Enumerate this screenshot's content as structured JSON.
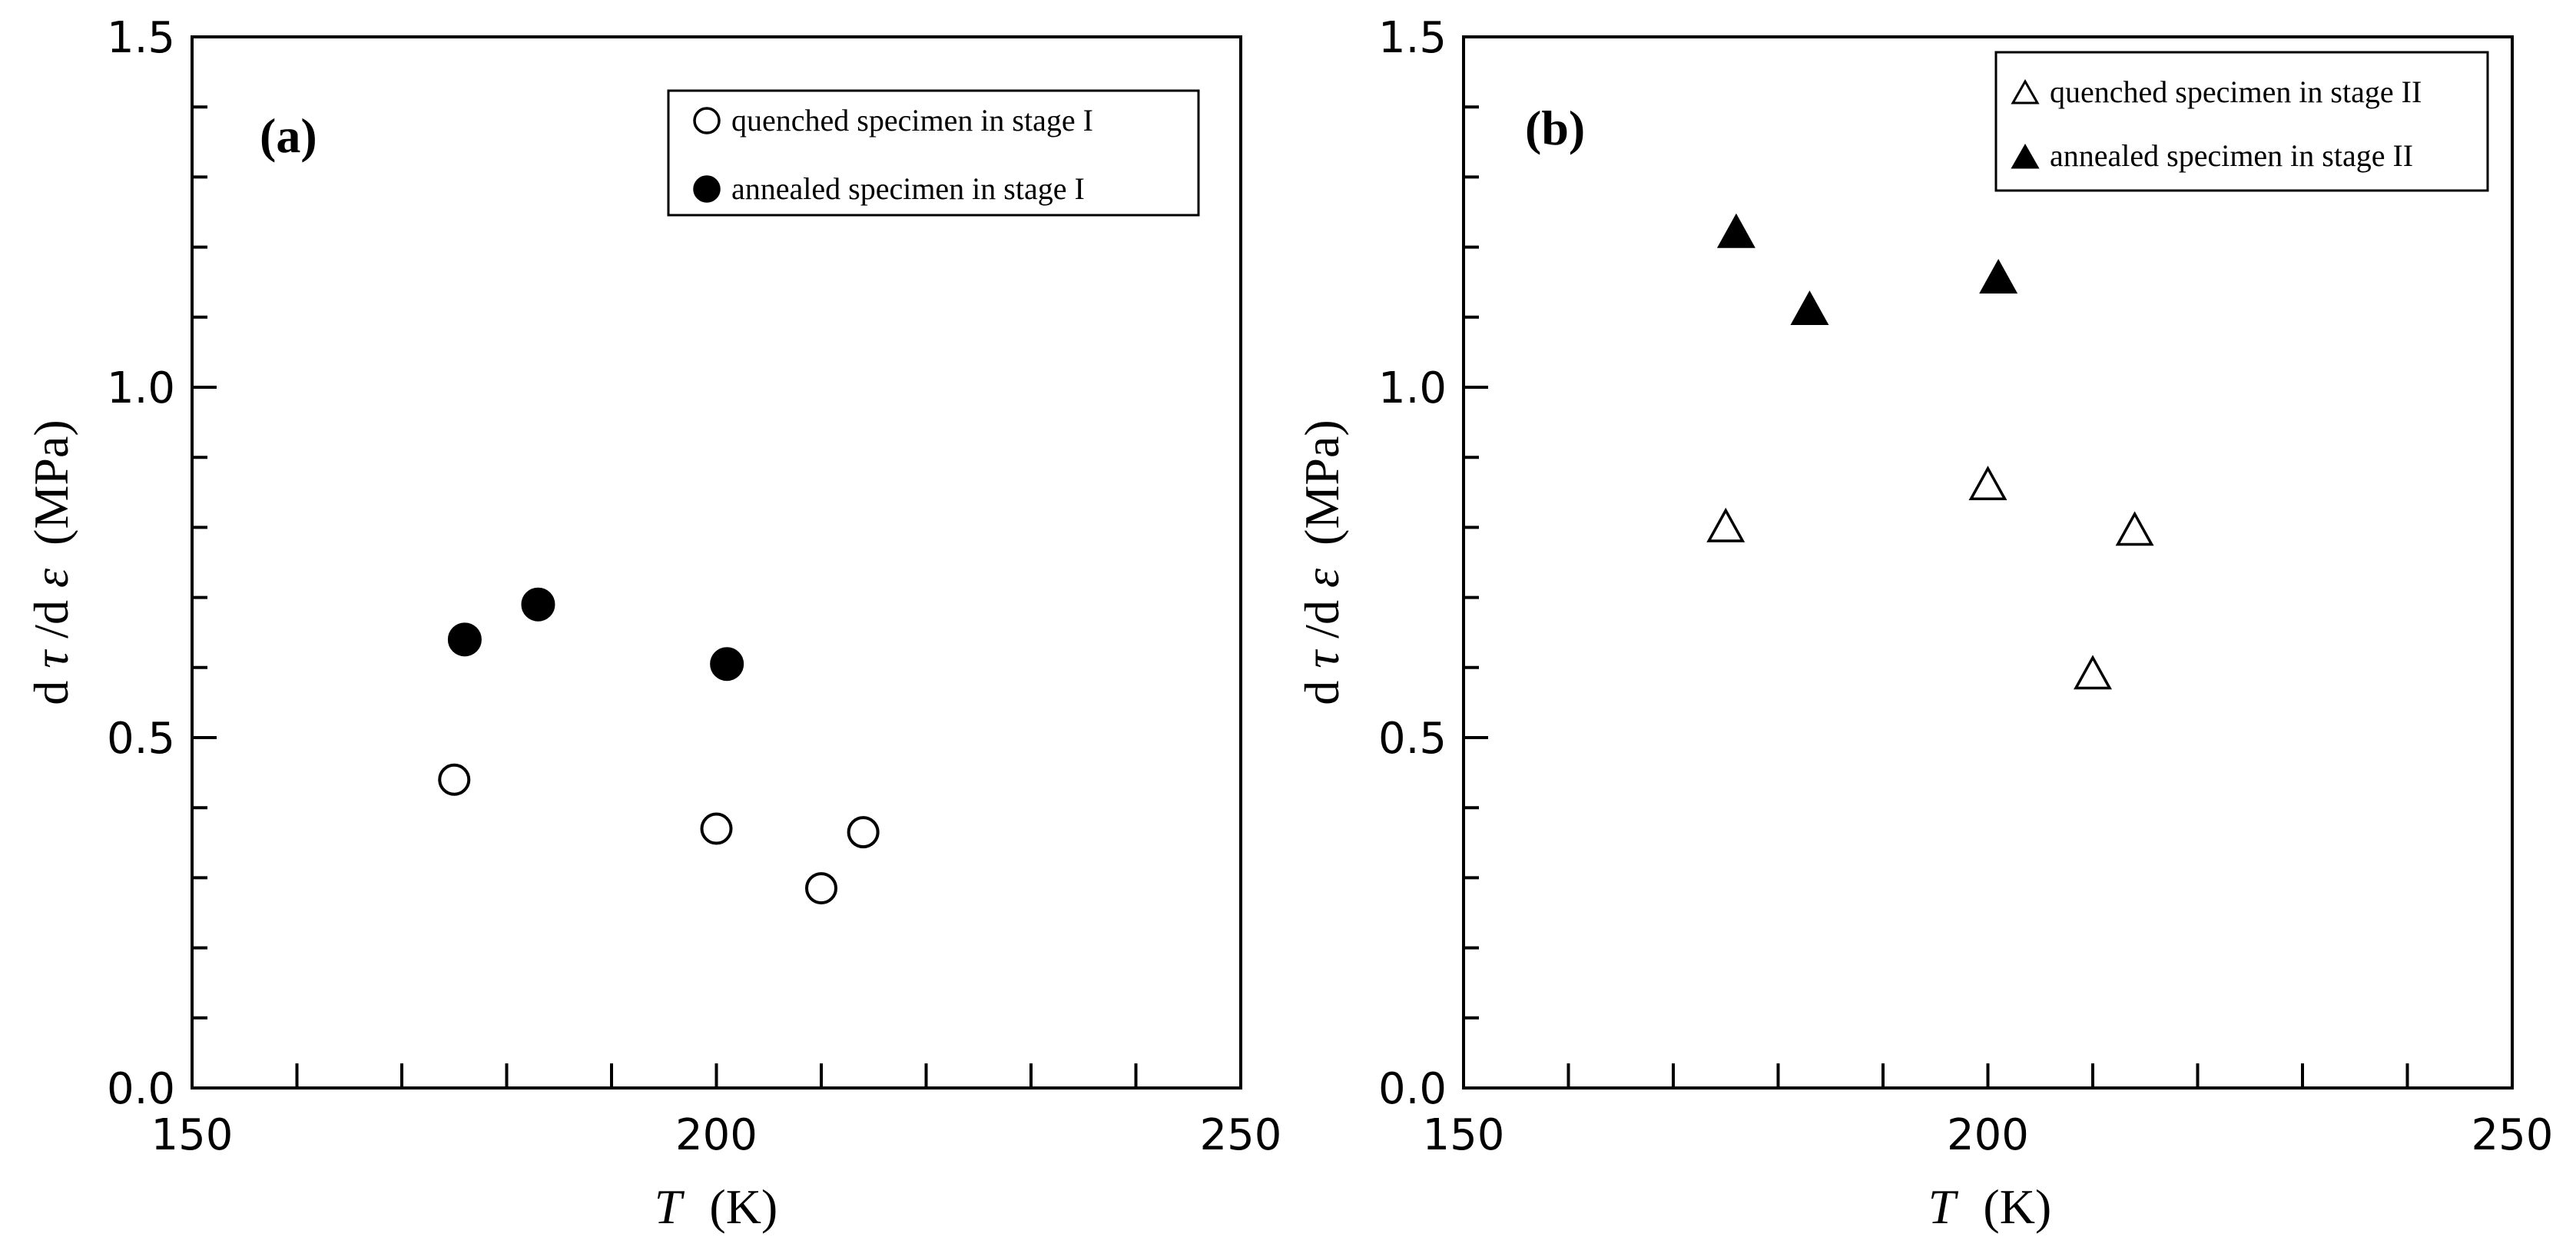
{
  "chart_data": [
    {
      "type": "scatter",
      "panel_label": "(a)",
      "xlabel_var": "T",
      "xlabel_unit": "(K)",
      "ylabel_prefix": "d",
      "ylabel_tau": "τ",
      "ylabel_mid": "/d",
      "ylabel_eps": "ε",
      "ylabel_unit": "(MPa)",
      "xlim": [
        150,
        250
      ],
      "ylim": [
        0.0,
        1.5
      ],
      "x_ticks": [
        150,
        200,
        250
      ],
      "x_tick_labels": [
        "150",
        "200",
        "250"
      ],
      "x_minor_step": 10,
      "y_ticks": [
        0.0,
        0.5,
        1.0,
        1.5
      ],
      "y_tick_labels": [
        "0.0",
        "0.5",
        "1.0",
        "1.5"
      ],
      "y_minor_step": 0.1,
      "grid": false,
      "legend_position": "top-right",
      "series": [
        {
          "name": "quenched specimen in stage I",
          "marker": "circle-open",
          "color": "#000000",
          "x": [
            175,
            200,
            210,
            214
          ],
          "y": [
            0.44,
            0.37,
            0.285,
            0.365
          ]
        },
        {
          "name": "annealed specimen in stage I",
          "marker": "circle-filled",
          "color": "#000000",
          "x": [
            176,
            183,
            201
          ],
          "y": [
            0.64,
            0.69,
            0.605
          ]
        }
      ]
    },
    {
      "type": "scatter",
      "panel_label": "(b)",
      "xlabel_var": "T",
      "xlabel_unit": "(K)",
      "ylabel_prefix": "d",
      "ylabel_tau": "τ",
      "ylabel_mid": "/d",
      "ylabel_eps": "ε",
      "ylabel_unit": "(MPa)",
      "xlim": [
        150,
        250
      ],
      "ylim": [
        0.0,
        1.5
      ],
      "x_ticks": [
        150,
        200,
        250
      ],
      "x_tick_labels": [
        "150",
        "200",
        "250"
      ],
      "x_minor_step": 10,
      "y_ticks": [
        0.0,
        0.5,
        1.0,
        1.5
      ],
      "y_tick_labels": [
        "0.0",
        "0.5",
        "1.0",
        "1.5"
      ],
      "y_minor_step": 0.1,
      "grid": false,
      "legend_position": "top-right",
      "series": [
        {
          "name": "quenched specimen in stage II",
          "marker": "triangle-open",
          "color": "#000000",
          "x": [
            175,
            200,
            210,
            214
          ],
          "y": [
            0.8,
            0.86,
            0.59,
            0.795
          ]
        },
        {
          "name": "annealed specimen in stage II",
          "marker": "triangle-filled",
          "color": "#000000",
          "x": [
            176,
            183,
            201
          ],
          "y": [
            1.22,
            1.11,
            1.155
          ]
        }
      ]
    }
  ]
}
